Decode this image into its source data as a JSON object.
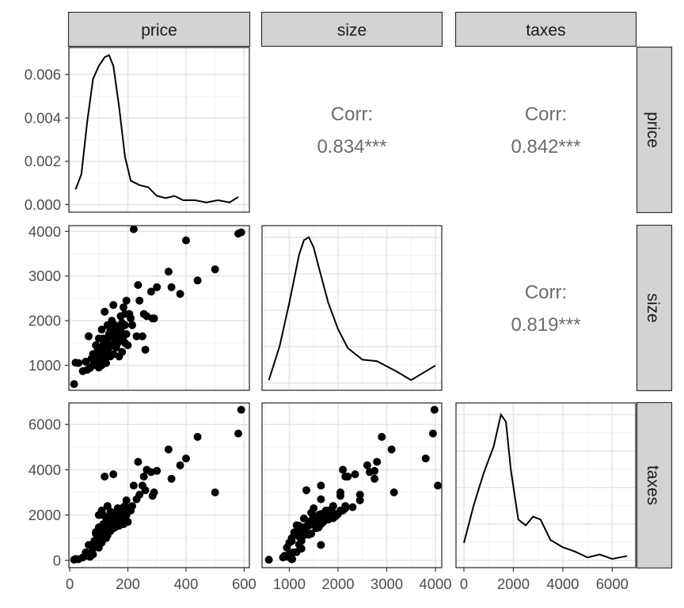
{
  "chart_data": {
    "type": "scatter-matrix",
    "variables": [
      "price",
      "size",
      "taxes"
    ],
    "strip_labels": {
      "top": [
        "price",
        "size",
        "taxes"
      ],
      "right": [
        "price",
        "size",
        "taxes"
      ]
    },
    "axes": {
      "price": {
        "range": [
          -3,
          618
        ],
        "ticks": [
          0,
          200,
          400,
          600
        ],
        "tick_labels": [
          "0",
          "200",
          "400",
          "600"
        ]
      },
      "size": {
        "range": [
          440,
          4130
        ],
        "ticks": [
          1000,
          2000,
          3000,
          4000
        ],
        "tick_labels": [
          "1000",
          "2000",
          "3000",
          "4000"
        ]
      },
      "taxes": {
        "range": [
          -320,
          6950
        ],
        "ticks": [
          0,
          2000,
          4000,
          6000
        ],
        "tick_labels": [
          "0",
          "2000",
          "4000",
          "6000"
        ]
      }
    },
    "price_density_axis": {
      "range": [
        -0.00035,
        0.00725
      ],
      "ticks": [
        0.0,
        0.002,
        0.004,
        0.006
      ],
      "tick_labels": [
        "0.000",
        "0.002",
        "0.004",
        "0.006"
      ]
    },
    "correlations": [
      {
        "x": "size",
        "y": "price",
        "label": "Corr:",
        "value": "0.834***"
      },
      {
        "x": "taxes",
        "y": "price",
        "label": "Corr:",
        "value": "0.842***"
      },
      {
        "x": "taxes",
        "y": "size",
        "label": "Corr:",
        "value": "0.819***"
      }
    ],
    "densities": {
      "price": [
        [
          20,
          0.0007
        ],
        [
          40,
          0.0014
        ],
        [
          60,
          0.0038
        ],
        [
          80,
          0.0058
        ],
        [
          100,
          0.0064
        ],
        [
          120,
          0.0068
        ],
        [
          135,
          0.0069
        ],
        [
          150,
          0.0064
        ],
        [
          170,
          0.0045
        ],
        [
          190,
          0.0022
        ],
        [
          210,
          0.0011
        ],
        [
          240,
          0.0009
        ],
        [
          270,
          0.0008
        ],
        [
          300,
          0.0004
        ],
        [
          330,
          0.0003
        ],
        [
          360,
          0.0004
        ],
        [
          390,
          0.0002
        ],
        [
          430,
          0.0002
        ],
        [
          470,
          0.0001
        ],
        [
          510,
          0.0002
        ],
        [
          550,
          0.0001
        ],
        [
          580,
          0.00035
        ]
      ],
      "size": [
        [
          580,
          0.02
        ],
        [
          800,
          0.25
        ],
        [
          1000,
          0.55
        ],
        [
          1200,
          0.88
        ],
        [
          1300,
          0.98
        ],
        [
          1400,
          1.0
        ],
        [
          1500,
          0.93
        ],
        [
          1600,
          0.8
        ],
        [
          1800,
          0.55
        ],
        [
          2000,
          0.37
        ],
        [
          2200,
          0.24
        ],
        [
          2500,
          0.16
        ],
        [
          2800,
          0.15
        ],
        [
          3200,
          0.08
        ],
        [
          3500,
          0.02
        ],
        [
          3700,
          0.06
        ],
        [
          4000,
          0.12
        ]
      ],
      "taxes": [
        [
          0,
          0.12
        ],
        [
          400,
          0.38
        ],
        [
          800,
          0.6
        ],
        [
          1200,
          0.78
        ],
        [
          1500,
          1.0
        ],
        [
          1700,
          0.95
        ],
        [
          1900,
          0.62
        ],
        [
          2200,
          0.28
        ],
        [
          2500,
          0.24
        ],
        [
          2800,
          0.3
        ],
        [
          3100,
          0.28
        ],
        [
          3500,
          0.14
        ],
        [
          4000,
          0.09
        ],
        [
          4500,
          0.06
        ],
        [
          5000,
          0.02
        ],
        [
          5500,
          0.04
        ],
        [
          6000,
          0.01
        ],
        [
          6600,
          0.03
        ]
      ]
    },
    "points": {
      "price_size_taxes": [
        [
          15,
          580,
          30
        ],
        [
          20,
          1060,
          60
        ],
        [
          30,
          1050,
          50
        ],
        [
          45,
          870,
          130
        ],
        [
          55,
          1080,
          350
        ],
        [
          60,
          900,
          200
        ],
        [
          65,
          1650,
          680
        ],
        [
          70,
          940,
          160
        ],
        [
          75,
          1150,
          370
        ],
        [
          80,
          1250,
          520
        ],
        [
          80,
          1000,
          260
        ],
        [
          85,
          1250,
          860
        ],
        [
          90,
          1450,
          1180
        ],
        [
          90,
          1200,
          700
        ],
        [
          95,
          1400,
          1130
        ],
        [
          95,
          1050,
          850
        ],
        [
          100,
          1300,
          1460
        ],
        [
          100,
          950,
          560
        ],
        [
          105,
          1200,
          1050
        ],
        [
          105,
          1100,
          1240
        ],
        [
          110,
          1350,
          1450
        ],
        [
          110,
          1000,
          780
        ],
        [
          115,
          1450,
          1600
        ],
        [
          115,
          1600,
          2000
        ],
        [
          120,
          1300,
          1350
        ],
        [
          120,
          1150,
          1550
        ],
        [
          125,
          1500,
          1880
        ],
        [
          125,
          1050,
          980
        ],
        [
          130,
          1550,
          1420
        ],
        [
          130,
          1300,
          1110
        ],
        [
          135,
          1700,
          1700
        ],
        [
          135,
          1400,
          1540
        ],
        [
          140,
          1800,
          1940
        ],
        [
          140,
          1200,
          1300
        ],
        [
          145,
          2000,
          2050
        ],
        [
          145,
          1450,
          1760
        ],
        [
          150,
          1650,
          1800
        ],
        [
          150,
          1250,
          1420
        ],
        [
          155,
          1900,
          1860
        ],
        [
          155,
          1600,
          1450
        ],
        [
          160,
          1750,
          2100
        ],
        [
          160,
          1400,
          1700
        ],
        [
          165,
          1850,
          1950
        ],
        [
          165,
          1500,
          2300
        ],
        [
          170,
          1550,
          1750
        ],
        [
          170,
          1200,
          1530
        ],
        [
          175,
          2100,
          2200
        ],
        [
          175,
          1800,
          1800
        ],
        [
          180,
          1950,
          1950
        ],
        [
          180,
          1300,
          1850
        ],
        [
          185,
          2300,
          2350
        ],
        [
          185,
          1650,
          1600
        ],
        [
          190,
          1900,
          2100
        ],
        [
          190,
          1500,
          1950
        ],
        [
          195,
          2450,
          2650
        ],
        [
          195,
          1700,
          2000
        ],
        [
          200,
          1450,
          1700
        ],
        [
          205,
          2150,
          2300
        ],
        [
          210,
          2050,
          2200
        ],
        [
          215,
          1900,
          2400
        ],
        [
          220,
          4050,
          3300
        ],
        [
          230,
          1650,
          2700
        ],
        [
          235,
          2800,
          4350
        ],
        [
          240,
          2450,
          2900
        ],
        [
          250,
          1650,
          3300
        ],
        [
          255,
          2150,
          3700
        ],
        [
          260,
          1350,
          3100
        ],
        [
          265,
          2100,
          4000
        ],
        [
          280,
          2650,
          3900
        ],
        [
          285,
          2050,
          2850
        ],
        [
          290,
          2050,
          3000
        ],
        [
          300,
          2750,
          3950
        ],
        [
          340,
          3100,
          4900
        ],
        [
          350,
          2750,
          3600
        ],
        [
          380,
          2600,
          4200
        ],
        [
          400,
          3800,
          4500
        ],
        [
          440,
          2900,
          5450
        ],
        [
          500,
          3150,
          3000
        ],
        [
          580,
          3950,
          5600
        ],
        [
          590,
          3980,
          6650
        ],
        [
          120,
          2200,
          3700
        ],
        [
          150,
          2350,
          3800
        ],
        [
          110,
          1800,
          2200
        ],
        [
          100,
          1600,
          2000
        ],
        [
          90,
          1150,
          1250
        ],
        [
          130,
          1900,
          2400
        ],
        [
          125,
          1550,
          1900
        ],
        [
          145,
          1450,
          2100
        ],
        [
          160,
          1650,
          2050
        ],
        [
          115,
          1350,
          1500
        ],
        [
          140,
          1850,
          2150
        ],
        [
          175,
          1750,
          2200
        ],
        [
          155,
          1750,
          1850
        ],
        [
          165,
          1850,
          2050
        ],
        [
          190,
          2150,
          2400
        ]
      ]
    }
  }
}
